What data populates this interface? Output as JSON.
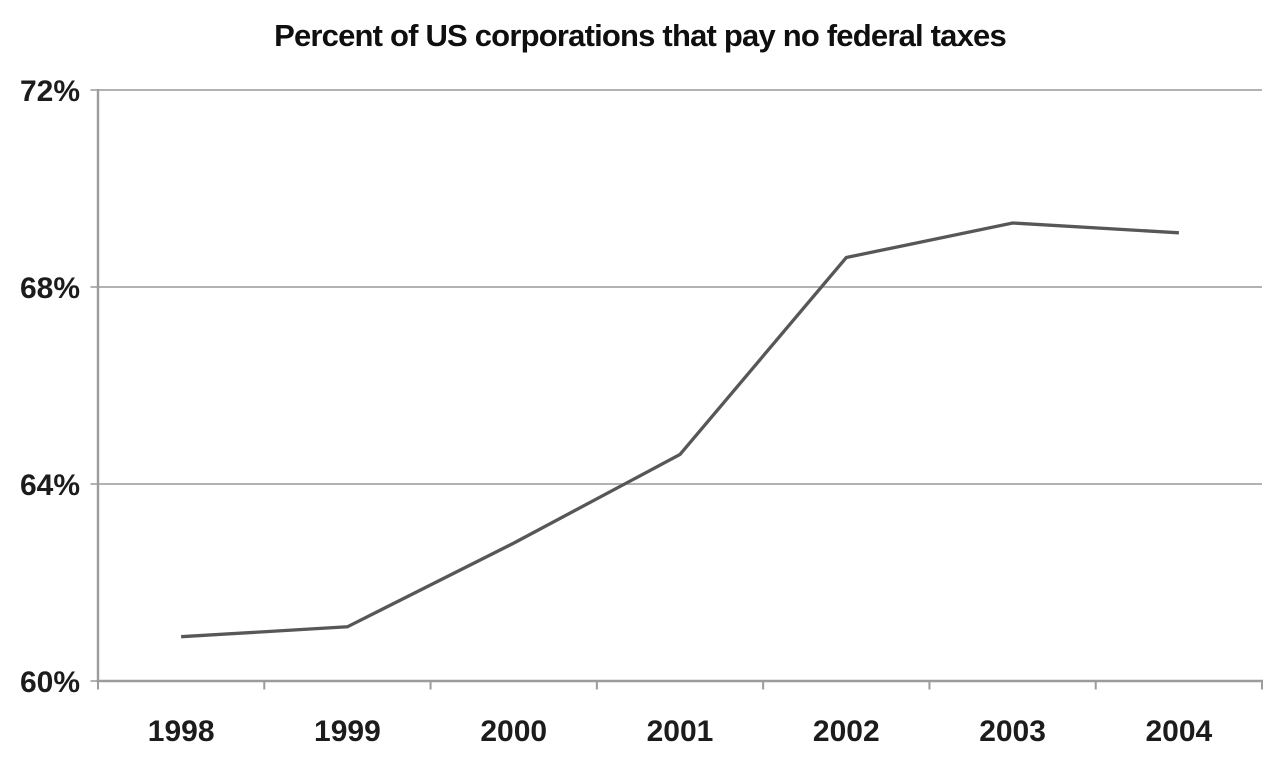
{
  "chart": {
    "title": "Percent of US corporations that pay no federal taxes"
  },
  "chart_data": {
    "type": "line",
    "title": "Percent of US corporations that pay no federal taxes",
    "categories": [
      "1998",
      "1999",
      "2000",
      "2001",
      "2002",
      "2003",
      "2004"
    ],
    "values": [
      60.9,
      61.1,
      62.8,
      64.6,
      68.6,
      69.3,
      69.1
    ],
    "xlabel": "",
    "ylabel": "",
    "ylim": [
      60,
      72
    ],
    "yticks": [
      60,
      64,
      68,
      72
    ],
    "ytick_labels": [
      "60%",
      "64%",
      "68%",
      "72%"
    ],
    "grid": "horizontal",
    "legend": "none",
    "colors": {
      "line": "#57575a",
      "grid": "#b2b2b4",
      "axis": "#9c9c9e",
      "tick_text": "#1c1c1c",
      "title_text": "#0f0f0f",
      "background": "#ffffff"
    }
  }
}
